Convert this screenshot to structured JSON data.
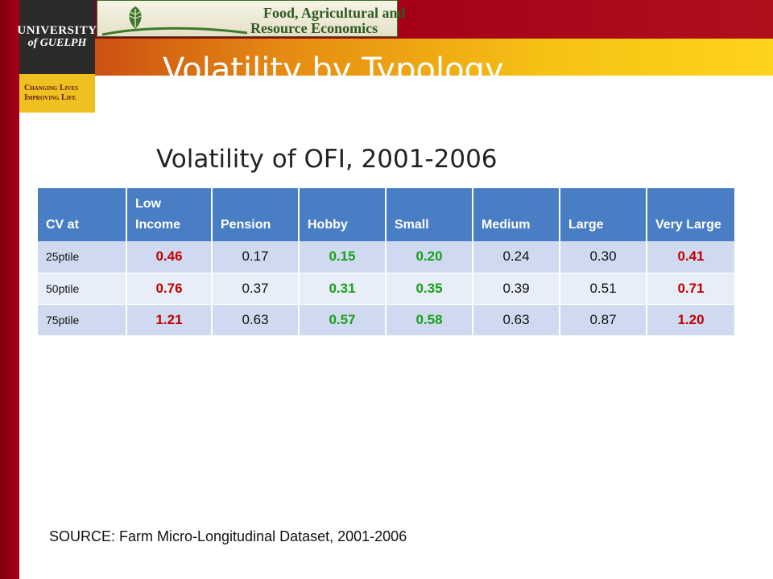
{
  "header": {
    "logo": {
      "line1": "UNIVERSITY",
      "line2": "of GUELPH"
    },
    "tagline": {
      "line1": "Changing Lives",
      "line2": "Improving Life"
    },
    "department": {
      "line1": "Food, Agricultural and",
      "line2": "Resource Economics"
    }
  },
  "slide": {
    "title": "Volatility by Typology",
    "table_heading": "Volatility of OFI, 2001-2006",
    "source": "SOURCE: Farm Micro-Longitudinal Dataset, 2001-2006"
  },
  "colors": {
    "header_blue": "#4a7ec4",
    "highlight_red": "#c00000",
    "highlight_green": "#1aa01a",
    "crimson": "#a80018",
    "gold": "#f6c214"
  },
  "table": {
    "columns": [
      "CV at",
      "Low Income",
      "Pension",
      "Hobby",
      "Small",
      "Medium",
      "Large",
      "Very Large"
    ],
    "rows": [
      {
        "label": "25ptile",
        "values": [
          "0.46",
          "0.17",
          "0.15",
          "0.20",
          "0.24",
          "0.30",
          "0.41"
        ]
      },
      {
        "label": "50ptile",
        "values": [
          "0.76",
          "0.37",
          "0.31",
          "0.35",
          "0.39",
          "0.51",
          "0.71"
        ]
      },
      {
        "label": "75ptile",
        "values": [
          "1.21",
          "0.63",
          "0.57",
          "0.58",
          "0.63",
          "0.87",
          "1.20"
        ]
      }
    ]
  }
}
